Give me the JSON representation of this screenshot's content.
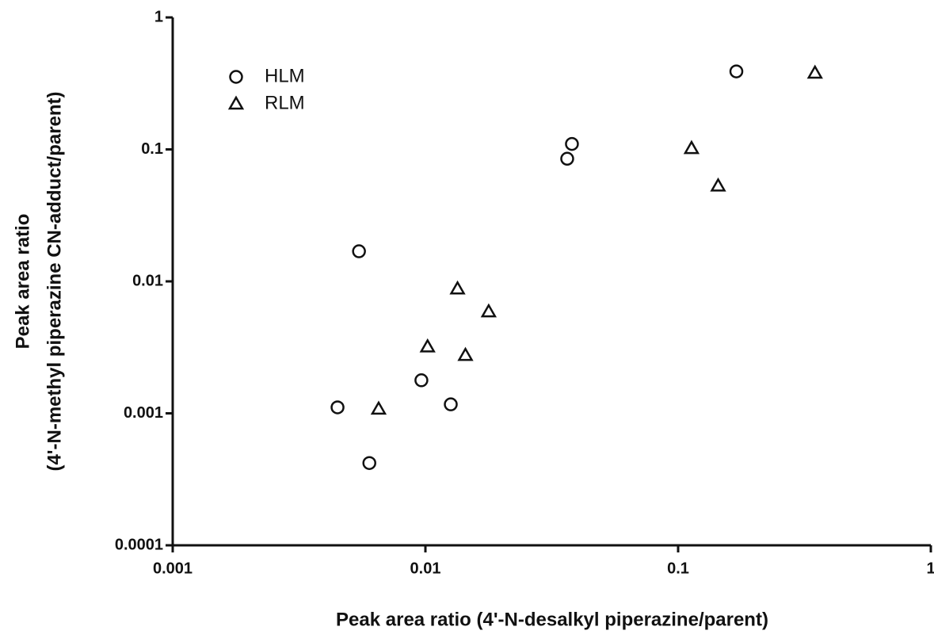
{
  "chart_data": {
    "type": "scatter",
    "x_label": "Peak area ratio (4'-N-desalkyl piperazine/parent)",
    "y_label": [
      "Peak area ratio",
      "(4'-N-methyl piperazine CN-adduct/parent)"
    ],
    "x_log": true,
    "y_log": true,
    "xlim": [
      0.001,
      1
    ],
    "ylim": [
      0.0001,
      1
    ],
    "xticks": [
      0.001,
      0.01,
      0.1,
      1
    ],
    "yticks": [
      0.0001,
      0.001,
      0.01,
      0.1,
      1
    ],
    "legend": "upper left",
    "series": [
      {
        "name": "HLM",
        "color": "#111111",
        "marker": "circle",
        "x": [
          0.17,
          0.038,
          0.0364,
          0.00546,
          0.00964,
          0.0126,
          0.00449,
          0.006
        ],
        "values": [
          0.39,
          0.11,
          0.085,
          0.0169,
          0.00178,
          0.00117,
          0.00111,
          0.00042
        ]
      },
      {
        "name": "RLM",
        "color": "#111111",
        "marker": "triangle",
        "x": [
          0.348,
          0.113,
          0.144,
          0.0134,
          0.0178,
          0.0102,
          0.0144,
          0.00653
        ],
        "values": [
          0.38,
          0.102,
          0.053,
          0.0088,
          0.0059,
          0.0032,
          0.00276,
          0.00108
        ]
      }
    ]
  }
}
